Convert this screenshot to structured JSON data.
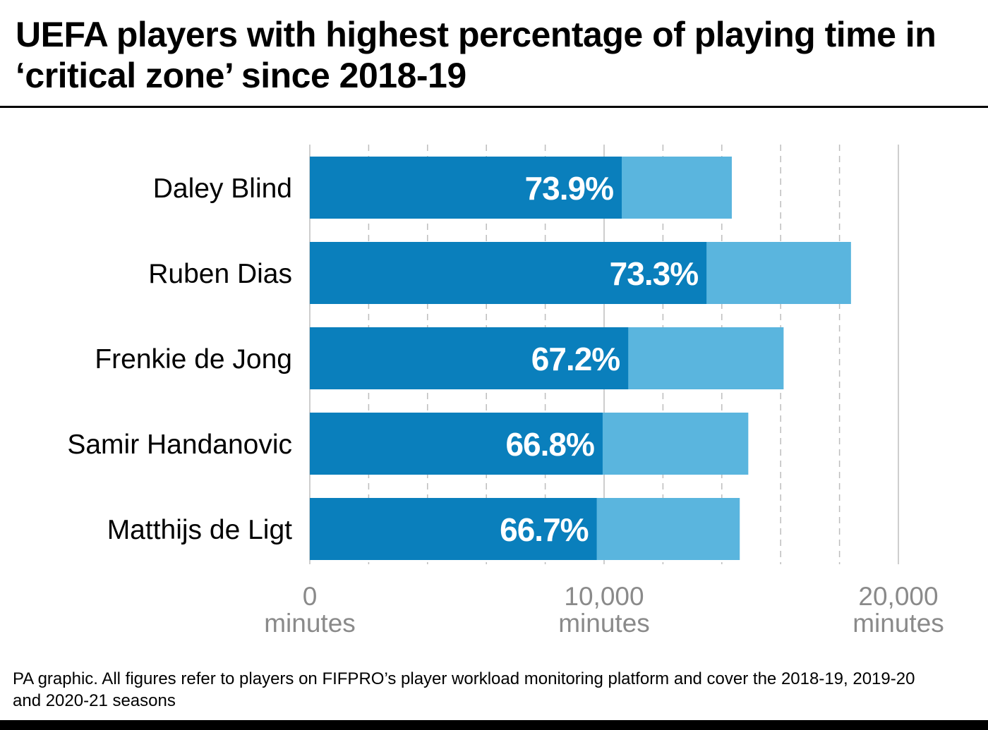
{
  "title": "UEFA players with highest percentage of playing time in ‘critical zone’ since 2018-19",
  "footnote": "PA graphic. All figures refer to players on FIFPRO’s player workload monitoring platform and cover the 2018-19, 2019-20 and 2020-21 seasons",
  "colors": {
    "critical": "#0a7fbc",
    "total": "#5ab5de",
    "grid": "#bdbdbd",
    "axis_text": "#8a8a8a",
    "label_text": "#ffffff"
  },
  "chart_data": {
    "type": "bar",
    "orientation": "horizontal",
    "stacked": true,
    "categories": [
      "Daley Blind",
      "Ruben Dias",
      "Frenkie de Jong",
      "Samir Handanovic",
      "Matthijs de Ligt"
    ],
    "series": [
      {
        "values": [
          10600,
          13480,
          10820,
          9950,
          9750
        ]
      },
      {
        "values": [
          3740,
          4910,
          5280,
          4950,
          4860
        ]
      }
    ],
    "data_labels": [
      "73.9%",
      "73.3%",
      "67.2%",
      "66.8%",
      "66.7%"
    ],
    "xlim": [
      0,
      20000
    ],
    "x_ticks": [
      {
        "value": 0,
        "label": "0",
        "unit": "minutes"
      },
      {
        "value": 10000,
        "label": "10,000",
        "unit": "minutes"
      },
      {
        "value": 20000,
        "label": "20,000",
        "unit": "minutes"
      }
    ],
    "minor_grid_step": 2000,
    "grid": true,
    "legend": "none"
  }
}
